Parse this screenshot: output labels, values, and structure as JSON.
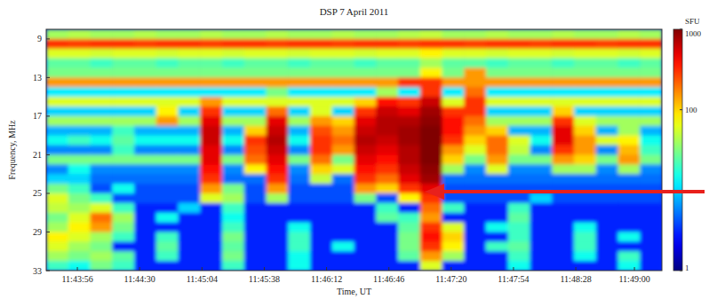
{
  "chart_data": {
    "type": "heatmap",
    "title": "DSP  7 April 2011",
    "x_label": "Time, UT",
    "y_label": "Frequency, MHz",
    "xlim": [
      42219,
      42555
    ],
    "ylim": [
      33,
      8
    ],
    "xticks": [
      {
        "value": 42236,
        "label": "11:43:56"
      },
      {
        "value": 42270,
        "label": "11:44:30"
      },
      {
        "value": 42304,
        "label": "11:45:04"
      },
      {
        "value": 42338,
        "label": "11:45:38"
      },
      {
        "value": 42372,
        "label": "11:46:12"
      },
      {
        "value": 42406,
        "label": "11:46:46"
      },
      {
        "value": 42440,
        "label": "11:47:20"
      },
      {
        "value": 42474,
        "label": "11:47:54"
      },
      {
        "value": 42508,
        "label": "11:48:28"
      },
      {
        "value": 42540,
        "label": "11:49:00"
      }
    ],
    "yticks": [
      9,
      13,
      17,
      21,
      25,
      29,
      33
    ],
    "x_edges": [
      42219,
      42231,
      42243,
      42255,
      42267,
      42279,
      42291,
      42303,
      42315,
      42327,
      42339,
      42351,
      42363,
      42375,
      42387,
      42399,
      42411,
      42423,
      42435,
      42447,
      42459,
      42471,
      42483,
      42495,
      42507,
      42519,
      42531,
      42543,
      42555
    ],
    "y_edges": [
      8,
      9,
      10,
      11,
      12,
      13,
      14,
      15,
      16,
      17,
      18,
      19,
      20,
      21,
      22,
      23,
      24,
      25,
      26,
      27,
      28,
      29,
      30,
      31,
      32,
      33
    ],
    "log": true,
    "clabel": "SFU",
    "clim": [
      1,
      1000
    ],
    "cticks": [
      1,
      100,
      1000
    ],
    "cells": [
      [
        40,
        45,
        40,
        40,
        45,
        40,
        40,
        45,
        40,
        40,
        45,
        40,
        40,
        45,
        40,
        40,
        45,
        50,
        40,
        40,
        45,
        40,
        40,
        45,
        40,
        40,
        45,
        40
      ],
      [
        300,
        280,
        300,
        300,
        280,
        300,
        300,
        280,
        300,
        300,
        280,
        300,
        300,
        280,
        300,
        300,
        280,
        300,
        300,
        280,
        300,
        300,
        280,
        300,
        300,
        280,
        300,
        300
      ],
      [
        60,
        60,
        55,
        60,
        60,
        55,
        60,
        60,
        55,
        60,
        60,
        55,
        60,
        60,
        55,
        60,
        60,
        80,
        60,
        60,
        55,
        60,
        60,
        55,
        60,
        60,
        55,
        60
      ],
      [
        25,
        25,
        20,
        25,
        25,
        20,
        25,
        25,
        20,
        25,
        25,
        20,
        25,
        25,
        20,
        25,
        25,
        40,
        25,
        25,
        20,
        25,
        25,
        20,
        25,
        25,
        20,
        25
      ],
      [
        30,
        30,
        30,
        30,
        30,
        30,
        30,
        30,
        30,
        30,
        30,
        30,
        30,
        30,
        30,
        30,
        30,
        80,
        30,
        150,
        30,
        30,
        30,
        30,
        30,
        30,
        30,
        30
      ],
      [
        150,
        150,
        150,
        150,
        150,
        150,
        150,
        150,
        150,
        150,
        150,
        150,
        150,
        150,
        150,
        150,
        300,
        300,
        150,
        150,
        150,
        150,
        150,
        150,
        150,
        150,
        150,
        150
      ],
      [
        12,
        12,
        12,
        12,
        12,
        12,
        12,
        12,
        12,
        12,
        30,
        12,
        12,
        12,
        12,
        40,
        12,
        300,
        12,
        200,
        12,
        12,
        12,
        12,
        12,
        12,
        12,
        12
      ],
      [
        60,
        60,
        60,
        60,
        60,
        60,
        60,
        150,
        60,
        60,
        60,
        60,
        60,
        60,
        100,
        400,
        300,
        600,
        60,
        300,
        60,
        60,
        60,
        60,
        60,
        60,
        60,
        60
      ],
      [
        10,
        10,
        10,
        10,
        10,
        80,
        10,
        300,
        10,
        10,
        200,
        10,
        60,
        10,
        300,
        600,
        500,
        800,
        300,
        300,
        10,
        10,
        10,
        100,
        10,
        10,
        10,
        10
      ],
      [
        40,
        40,
        40,
        40,
        40,
        150,
        40,
        500,
        40,
        40,
        500,
        40,
        150,
        100,
        500,
        700,
        700,
        900,
        400,
        200,
        40,
        40,
        40,
        300,
        60,
        40,
        40,
        40
      ],
      [
        8,
        8,
        8,
        20,
        8,
        8,
        8,
        600,
        8,
        100,
        600,
        8,
        250,
        150,
        600,
        700,
        800,
        1000,
        400,
        150,
        100,
        8,
        8,
        500,
        100,
        8,
        40,
        8
      ],
      [
        15,
        20,
        15,
        25,
        15,
        15,
        15,
        600,
        15,
        300,
        700,
        15,
        300,
        200,
        700,
        600,
        800,
        1000,
        300,
        100,
        200,
        60,
        15,
        500,
        150,
        60,
        80,
        15
      ],
      [
        6,
        6,
        6,
        20,
        6,
        6,
        6,
        500,
        6,
        250,
        600,
        6,
        300,
        150,
        600,
        500,
        700,
        1000,
        150,
        60,
        200,
        50,
        6,
        300,
        150,
        6,
        120,
        20
      ],
      [
        30,
        30,
        30,
        30,
        30,
        30,
        30,
        500,
        30,
        200,
        500,
        30,
        200,
        30,
        500,
        400,
        700,
        1000,
        100,
        30,
        150,
        30,
        30,
        150,
        100,
        30,
        150,
        30
      ],
      [
        6,
        15,
        6,
        6,
        6,
        6,
        6,
        400,
        6,
        80,
        400,
        6,
        100,
        60,
        400,
        300,
        600,
        900,
        40,
        6,
        60,
        6,
        6,
        40,
        40,
        6,
        40,
        6
      ],
      [
        10,
        10,
        5,
        5,
        5,
        5,
        5,
        300,
        5,
        5,
        300,
        5,
        50,
        5,
        300,
        200,
        500,
        800,
        5,
        5,
        5,
        5,
        5,
        5,
        5,
        5,
        5,
        5
      ],
      [
        30,
        20,
        4,
        15,
        4,
        4,
        4,
        150,
        30,
        4,
        150,
        4,
        4,
        4,
        150,
        100,
        300,
        500,
        4,
        4,
        4,
        4,
        4,
        4,
        4,
        4,
        4,
        4
      ],
      [
        60,
        30,
        20,
        4,
        4,
        4,
        4,
        60,
        40,
        4,
        40,
        4,
        4,
        4,
        30,
        4,
        80,
        300,
        4,
        4,
        4,
        4,
        10,
        4,
        4,
        4,
        4,
        4
      ],
      [
        50,
        40,
        60,
        20,
        3,
        3,
        10,
        3,
        20,
        3,
        3,
        3,
        3,
        3,
        3,
        20,
        3,
        200,
        20,
        3,
        3,
        20,
        3,
        3,
        3,
        3,
        3,
        3
      ],
      [
        30,
        60,
        200,
        40,
        3,
        15,
        3,
        3,
        15,
        3,
        3,
        3,
        3,
        3,
        3,
        25,
        20,
        150,
        3,
        3,
        3,
        25,
        3,
        3,
        3,
        3,
        3,
        3
      ],
      [
        40,
        80,
        150,
        30,
        3,
        3,
        3,
        3,
        20,
        3,
        3,
        15,
        3,
        3,
        3,
        3,
        25,
        300,
        60,
        3,
        15,
        20,
        3,
        3,
        15,
        3,
        3,
        3
      ],
      [
        80,
        60,
        40,
        20,
        3,
        20,
        3,
        3,
        30,
        3,
        3,
        20,
        3,
        3,
        3,
        3,
        30,
        400,
        100,
        3,
        3,
        20,
        3,
        3,
        20,
        3,
        15,
        3
      ],
      [
        60,
        40,
        30,
        3,
        3,
        25,
        3,
        3,
        25,
        3,
        3,
        20,
        3,
        15,
        3,
        3,
        30,
        300,
        80,
        3,
        20,
        25,
        3,
        3,
        20,
        3,
        3,
        3
      ],
      [
        40,
        30,
        40,
        25,
        3,
        20,
        3,
        3,
        30,
        3,
        3,
        15,
        3,
        3,
        3,
        3,
        25,
        150,
        40,
        3,
        3,
        20,
        3,
        3,
        15,
        3,
        20,
        3
      ],
      [
        20,
        15,
        30,
        20,
        3,
        3,
        3,
        3,
        20,
        3,
        3,
        15,
        3,
        3,
        3,
        3,
        3,
        60,
        3,
        3,
        3,
        15,
        3,
        3,
        3,
        3,
        15,
        3
      ]
    ]
  }
}
